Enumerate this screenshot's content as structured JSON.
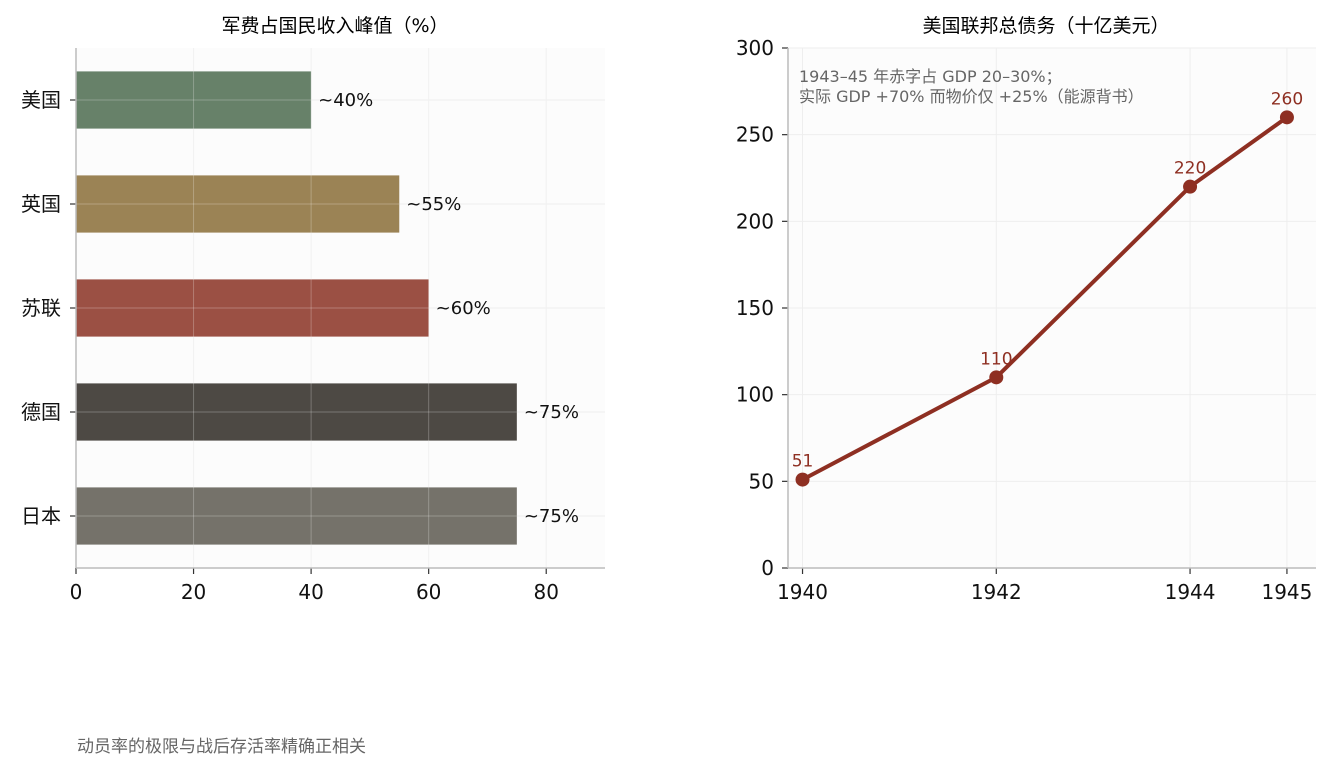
{
  "chart_data": [
    {
      "type": "bar",
      "orientation": "horizontal",
      "title": "军费占国民收入峰值（%）",
      "categories": [
        "美国",
        "英国",
        "苏联",
        "德国",
        "日本"
      ],
      "values": [
        40,
        55,
        60,
        75,
        75
      ],
      "value_labels": [
        "~40%",
        "~55%",
        "~60%",
        "~75%",
        "~75%"
      ],
      "colors": [
        "#678169",
        "#9b8355",
        "#9b5044",
        "#4d4944",
        "#75726a"
      ],
      "xlim": [
        0,
        90
      ],
      "xticks": [
        0,
        20,
        40,
        60,
        80
      ],
      "grid": true
    },
    {
      "type": "line",
      "title": "美国联邦总债务（十亿美元）",
      "x": [
        1940,
        1942,
        1944,
        1945
      ],
      "values": [
        51,
        110,
        220,
        260
      ],
      "point_labels": [
        "51",
        "110",
        "220",
        "260"
      ],
      "color": "#8e2f22",
      "ylim": [
        0,
        300
      ],
      "yticks": [
        0,
        50,
        100,
        150,
        200,
        250,
        300
      ],
      "xticks": [
        1940,
        1942,
        1944,
        1945
      ],
      "annotation": [
        "1943–45 年赤字占 GDP 20–30%；",
        "实际 GDP +70% 而物价仅 +25%（能源背书）"
      ],
      "grid": true
    }
  ],
  "footer_note": "动员率的极限与战后存活率精确正相关"
}
